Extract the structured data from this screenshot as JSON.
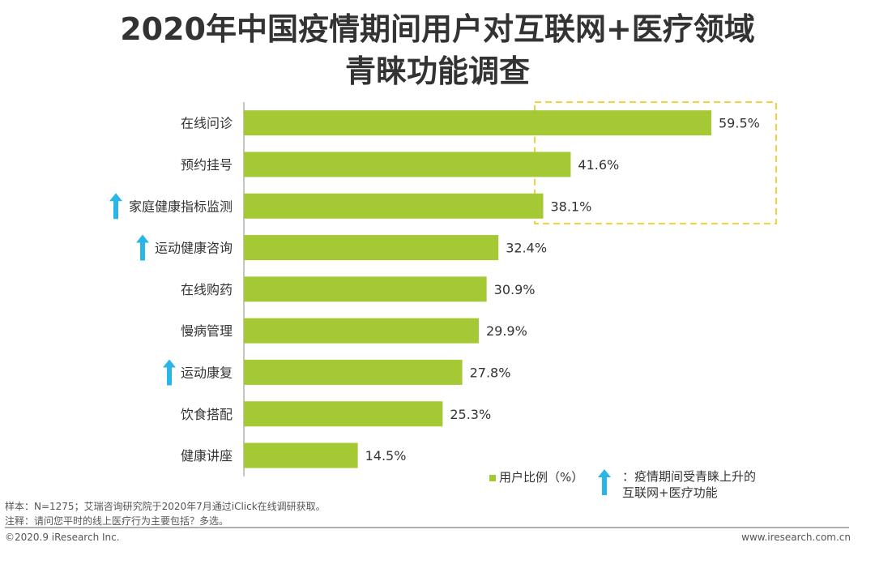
{
  "title": {
    "line1": "2020年中国疫情期间用户对互联网+医疗领域",
    "line2": "青睐功能调查"
  },
  "chart_data": {
    "type": "bar",
    "orientation": "horizontal",
    "categories": [
      "在线问诊",
      "预约挂号",
      "家庭健康指标监测",
      "运动健康咨询",
      "在线购药",
      "慢病管理",
      "运动康复",
      "饮食搭配",
      "健康讲座"
    ],
    "values": [
      59.5,
      41.6,
      38.1,
      32.4,
      30.9,
      29.9,
      27.8,
      25.3,
      14.5
    ],
    "value_labels": [
      "59.5%",
      "41.6%",
      "38.1%",
      "32.4%",
      "30.9%",
      "29.9%",
      "27.8%",
      "25.3%",
      "14.5%"
    ],
    "rising": [
      false,
      false,
      true,
      true,
      false,
      false,
      true,
      false,
      false
    ],
    "highlighted_top": 3,
    "series_name": "用户比例（%）",
    "xlim": [
      0,
      70
    ],
    "bar_color": "#a4c935",
    "arrow_color": "#29b6e6",
    "highlight_color": "#f0d23c"
  },
  "legend": {
    "series_label": "用户比例（%）",
    "arrow_label_line1": "：疫情期间受青睐上升的",
    "arrow_label_line2": "互联网+医疗功能"
  },
  "notes": {
    "sample": "样本：N=1275；艾瑞咨询研究院于2020年7月通过iClick在线调研获取。",
    "remark": "注释：请问您平时的线上医疗行为主要包括？多选。"
  },
  "footer": {
    "copyright": "©2020.9 iResearch Inc.",
    "website": "www.iresearch.com.cn"
  }
}
